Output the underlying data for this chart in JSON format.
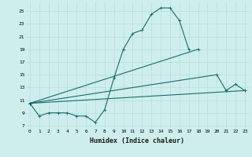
{
  "xlabel": "Humidex (Indice chaleur)",
  "bg_color": "#cdeeed",
  "grid_color": "#b8dcdc",
  "line_color": "#1a6b6b",
  "xlim": [
    -0.5,
    23.5
  ],
  "ylim": [
    6.5,
    26.5
  ],
  "xticks": [
    0,
    1,
    2,
    3,
    4,
    5,
    6,
    7,
    8,
    9,
    10,
    11,
    12,
    13,
    14,
    15,
    16,
    17,
    18,
    19,
    20,
    21,
    22,
    23
  ],
  "yticks": [
    7,
    9,
    11,
    13,
    15,
    17,
    19,
    21,
    23,
    25
  ],
  "line1_x": [
    0,
    1,
    2,
    3,
    4,
    5,
    6,
    7,
    8,
    9,
    10,
    11,
    12,
    13,
    14,
    15,
    16,
    17
  ],
  "line1_y": [
    10.5,
    8.5,
    9.0,
    9.0,
    9.0,
    8.5,
    8.5,
    7.5,
    9.5,
    14.5,
    19.0,
    21.5,
    22.0,
    24.5,
    25.5,
    25.5,
    23.5,
    19.0
  ],
  "line2_x": [
    0,
    18
  ],
  "line2_y": [
    10.5,
    19.0
  ],
  "line3_x": [
    0,
    23
  ],
  "line3_y": [
    10.5,
    12.5
  ],
  "line4_x": [
    0,
    20,
    21,
    22,
    23
  ],
  "line4_y": [
    10.5,
    15.0,
    12.5,
    13.5,
    12.5
  ],
  "tick_fontsize": 4.5,
  "xlabel_fontsize": 6,
  "marker_size": 1.8,
  "line_width": 0.8
}
